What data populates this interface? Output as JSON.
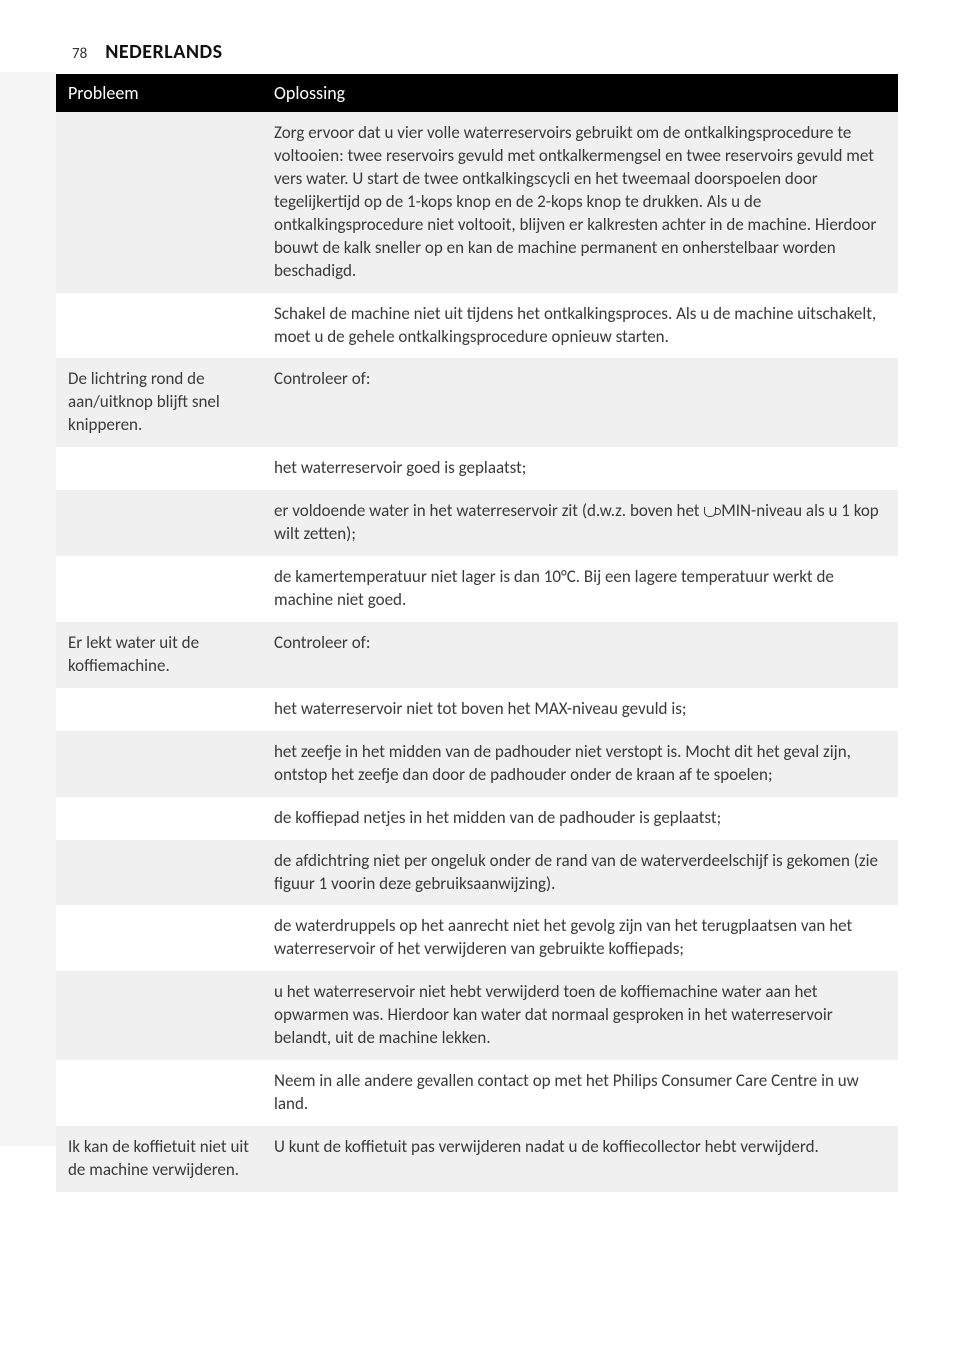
{
  "page": {
    "number": "78",
    "language_title": "NEDERLANDS"
  },
  "table": {
    "header": {
      "col1": "Probleem",
      "col2": "Oplossing"
    },
    "rows": [
      {
        "shade": true,
        "problem": "",
        "solution": "Zorg ervoor dat u vier volle waterreservoirs gebruikt om de ontkalkingsprocedure te voltooien: twee reservoirs gevuld met ontkalkermengsel en twee reservoirs gevuld met vers water. U start de twee ontkalkingscycli en het tweemaal doorspoelen door tegelijkertijd op de 1-kops knop en de 2-kops knop te drukken. Als u de ontkalkingsprocedure niet voltooit, blijven er kalkresten achter in de machine. Hierdoor bouwt de kalk sneller op en kan de machine permanent en onherstelbaar worden beschadigd."
      },
      {
        "shade": false,
        "problem": "",
        "solution": "Schakel de machine niet uit tijdens het ontkalkingsproces. Als u de machine uitschakelt, moet u de gehele ontkalkingsprocedure opnieuw starten."
      },
      {
        "shade": true,
        "problem": "De lichtring rond de aan/uitknop blijft snel knipperen.",
        "solution": "Controleer of:"
      },
      {
        "shade": false,
        "problem": "",
        "solution": "het waterreservoir goed is geplaatst;"
      },
      {
        "shade": true,
        "problem": "",
        "solution_pre": "er voldoende water in het waterreservoir zit (d.w.z. boven het ",
        "solution_post": " MIN-niveau als u 1 kop wilt zetten);",
        "has_icon": true
      },
      {
        "shade": false,
        "problem": "",
        "solution": "de kamertemperatuur niet lager is dan 10°C. Bij een lagere temperatuur werkt de machine niet goed."
      },
      {
        "shade": true,
        "problem": "Er lekt water uit de koffiemachine.",
        "solution": "Controleer of:"
      },
      {
        "shade": false,
        "problem": "",
        "solution": "het waterreservoir niet tot boven het MAX-niveau gevuld is;"
      },
      {
        "shade": true,
        "problem": "",
        "solution": "het zeefje in het midden van de padhouder niet verstopt is. Mocht dit het geval zijn, ontstop het zeefje dan door de padhouder onder de kraan af te spoelen;"
      },
      {
        "shade": false,
        "problem": "",
        "solution": "de koffiepad netjes in het midden van de padhouder is geplaatst;"
      },
      {
        "shade": true,
        "problem": "",
        "solution": "de afdichtring niet per ongeluk onder de rand van de waterverdeelschijf is gekomen (zie figuur 1 voorin deze gebruiksaanwijzing)."
      },
      {
        "shade": false,
        "problem": "",
        "solution": "de waterdruppels op het aanrecht niet het gevolg zijn van het terugplaatsen van het waterreservoir of het verwijderen van gebruikte koffiepads;"
      },
      {
        "shade": true,
        "problem": "",
        "solution": "u het waterreservoir niet hebt verwijderd toen de koffiemachine water aan het opwarmen was. Hierdoor kan water dat normaal gesproken in het waterreservoir belandt, uit de machine lekken."
      },
      {
        "shade": false,
        "problem": "",
        "solution": "Neem in alle andere gevallen contact op met het Philips Consumer Care Centre in uw land."
      },
      {
        "shade": true,
        "problem": "Ik kan de koffietuit niet uit de machine verwijderen.",
        "solution": "U kunt de koffietuit pas verwijderen nadat u de koffiecollector hebt verwijderd."
      }
    ]
  }
}
